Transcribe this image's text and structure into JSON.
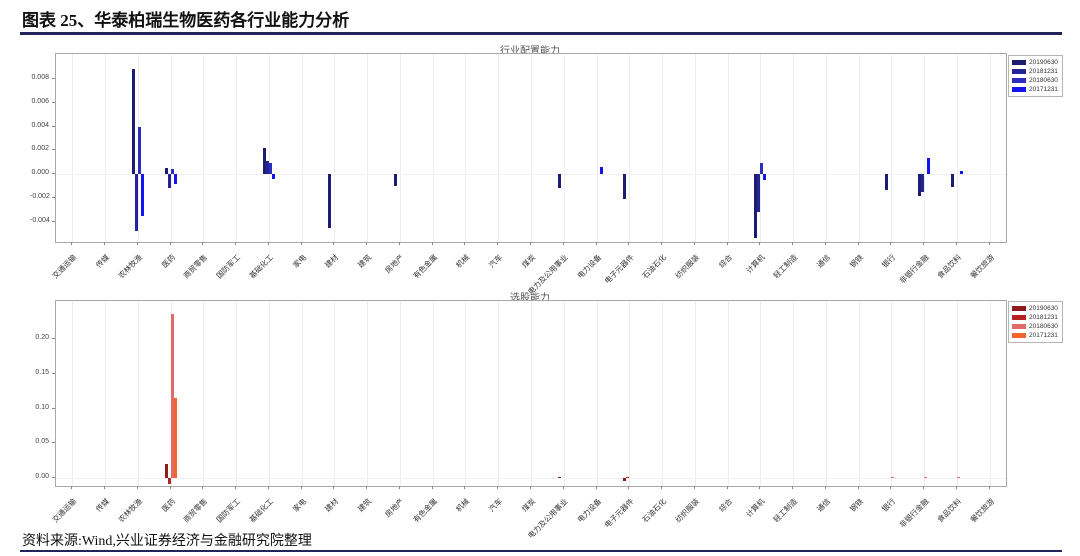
{
  "header": {
    "title": "图表 25、华泰柏瑞生物医药各行业能力分析"
  },
  "footer": {
    "source": "资料来源:Wind,兴业证券经济与金融研究院整理"
  },
  "colors": {
    "title_rule": "#23235c",
    "frame": "#a8a8a8",
    "grid": "#ededed"
  },
  "chart_data": [
    {
      "type": "bar",
      "title": "行业配置能力",
      "grid": "vertical",
      "legend_position": "upper right outside",
      "ylim": [
        -0.0057,
        0.0101
      ],
      "yticks": [
        {
          "v": 0.008,
          "label": "0.008"
        },
        {
          "v": 0.006,
          "label": "0.006"
        },
        {
          "v": 0.004,
          "label": "0.004"
        },
        {
          "v": 0.002,
          "label": "0.002"
        },
        {
          "v": 0.0,
          "label": "0.000"
        },
        {
          "v": -0.002,
          "label": "-0.002"
        },
        {
          "v": -0.004,
          "label": "-0.004"
        }
      ],
      "categories": [
        "交通运输",
        "传媒",
        "农林牧渔",
        "医药",
        "商贸零售",
        "国防军工",
        "基础化工",
        "家电",
        "建材",
        "建筑",
        "房地产",
        "有色金属",
        "机械",
        "汽车",
        "煤炭",
        "电力及公用事业",
        "电力设备",
        "电子元器件",
        "石油石化",
        "纺织服装",
        "综合",
        "计算机",
        "轻工制造",
        "通信",
        "钢铁",
        "银行",
        "非银行金融",
        "食品饮料",
        "餐饮旅游"
      ],
      "series": [
        {
          "name": "20190630",
          "color": "#1c1c70",
          "values": [
            0,
            0,
            0.0088,
            0.0005,
            0,
            0,
            0.0022,
            0,
            -0.0045,
            0,
            -0.001,
            0,
            0,
            0,
            0,
            -0.0012,
            0,
            -0.0021,
            0,
            0,
            0,
            -0.0054,
            0,
            0,
            0,
            -0.0013,
            -0.0018,
            -0.0011,
            0
          ]
        },
        {
          "name": "20181231",
          "color": "#242494",
          "values": [
            0,
            0,
            -0.0048,
            -0.0012,
            0,
            0,
            0.0011,
            0,
            0,
            0,
            0,
            0,
            0,
            0,
            0,
            0,
            0,
            0,
            0,
            0,
            0,
            -0.0032,
            0,
            0,
            0,
            0,
            -0.0015,
            0,
            0
          ]
        },
        {
          "name": "20180630",
          "color": "#2c2cc0",
          "values": [
            0,
            0,
            0.004,
            0.0004,
            0,
            0,
            0.0009,
            0,
            0,
            0,
            0,
            0,
            0,
            0,
            0,
            0,
            0,
            0,
            0,
            0,
            0,
            0.0009,
            0,
            0,
            0,
            0,
            0,
            0,
            0
          ]
        },
        {
          "name": "20171231",
          "color": "#1414ee",
          "values": [
            0,
            0,
            -0.0035,
            -0.0008,
            0,
            0,
            -0.0004,
            0,
            0,
            0,
            0,
            0,
            0,
            0,
            0,
            0,
            0.0006,
            0,
            0,
            0,
            0,
            -0.0005,
            0,
            0,
            0,
            0,
            0.0014,
            0.0003,
            0
          ]
        }
      ]
    },
    {
      "type": "bar",
      "title": "选股能力",
      "grid": "vertical",
      "legend_position": "upper right outside",
      "ylim": [
        -0.011,
        0.254
      ],
      "yticks": [
        {
          "v": 0.2,
          "label": "0.20"
        },
        {
          "v": 0.15,
          "label": "0.15"
        },
        {
          "v": 0.1,
          "label": "0.10"
        },
        {
          "v": 0.05,
          "label": "0.05"
        },
        {
          "v": 0.0,
          "label": "0.00"
        }
      ],
      "categories": [
        "交通运输",
        "传媒",
        "农林牧渔",
        "医药",
        "商贸零售",
        "国防军工",
        "基础化工",
        "家电",
        "建材",
        "建筑",
        "房地产",
        "有色金属",
        "机械",
        "汽车",
        "煤炭",
        "电力及公用事业",
        "电力设备",
        "电子元器件",
        "石油石化",
        "纺织服装",
        "综合",
        "计算机",
        "轻工制造",
        "通信",
        "钢铁",
        "银行",
        "非银行金融",
        "食品饮料",
        "餐饮旅游"
      ],
      "series": [
        {
          "name": "20190630",
          "color": "#8e1c1c",
          "values": [
            0,
            0,
            0,
            0.021,
            0,
            0,
            0,
            0,
            0,
            0,
            0,
            0,
            0,
            0,
            0,
            0.002,
            0,
            -0.004,
            0,
            0,
            0,
            0,
            0,
            0,
            0,
            0,
            0,
            0,
            0
          ]
        },
        {
          "name": "20181231",
          "color": "#b52222",
          "values": [
            0,
            0,
            0,
            -0.008,
            0,
            0,
            0,
            0,
            0,
            0,
            0,
            0,
            0,
            0,
            0,
            0,
            0,
            0.002,
            0,
            0,
            0,
            0,
            0,
            0,
            0,
            0,
            0,
            0,
            0
          ]
        },
        {
          "name": "20180630",
          "color": "#e06a6a",
          "values": [
            0,
            0,
            0,
            0.235,
            0,
            0,
            0,
            0,
            0,
            0,
            0,
            0,
            0,
            0,
            0,
            0,
            0,
            0,
            0,
            0,
            0,
            0,
            0,
            0,
            0,
            0.002,
            0.002,
            0.002,
            0
          ]
        },
        {
          "name": "20171231",
          "color": "#f2662c",
          "values": [
            0,
            0,
            0,
            0.115,
            0,
            0,
            0,
            0,
            0,
            0,
            0,
            0,
            0,
            0,
            0,
            0,
            0,
            0,
            0,
            0,
            0,
            0,
            0,
            0,
            0,
            0,
            0,
            0,
            0
          ]
        }
      ]
    }
  ]
}
